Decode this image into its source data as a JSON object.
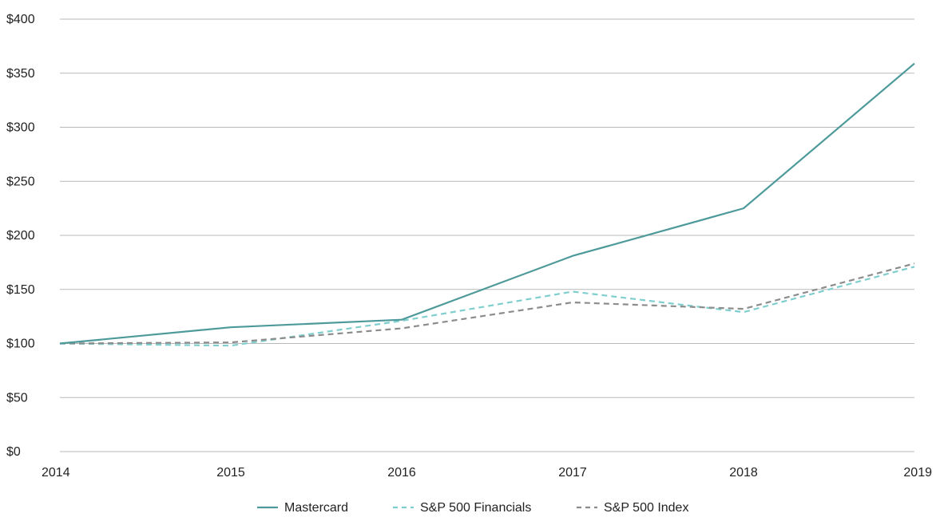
{
  "chart_data": {
    "type": "line",
    "title": "",
    "xlabel": "",
    "ylabel": "",
    "x": [
      2014,
      2015,
      2016,
      2017,
      2018,
      2019
    ],
    "x_tick_labels": [
      "2014",
      "2015",
      "2016",
      "2017",
      "2018",
      "2019"
    ],
    "ylim": [
      0,
      400
    ],
    "y_ticks": [
      0,
      50,
      100,
      150,
      200,
      250,
      300,
      350,
      400
    ],
    "y_tick_labels": [
      "$0",
      "$50",
      "$100",
      "$150",
      "$200",
      "$250",
      "$300",
      "$350",
      "$400"
    ],
    "grid": true,
    "legend_position": "bottom",
    "series": [
      {
        "name": "Mastercard",
        "values": [
          100,
          115,
          122,
          181,
          225,
          359
        ],
        "color": "#4e9a9a",
        "style": "solid"
      },
      {
        "name": "S&P 500 Financials",
        "values": [
          100,
          98,
          121,
          148,
          129,
          171
        ],
        "color": "#7fcece",
        "style": "dashed"
      },
      {
        "name": "S&P 500 Index",
        "values": [
          100,
          101,
          114,
          138,
          132,
          174
        ],
        "color": "#8c8c8c",
        "style": "dashed"
      }
    ]
  }
}
